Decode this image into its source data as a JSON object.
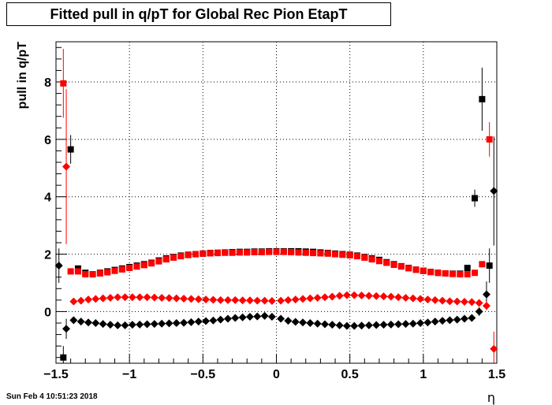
{
  "chart_data": {
    "type": "scatter",
    "title": "Fitted pull in q/pT for Global Rec Pion EtapT",
    "xlabel": "η",
    "ylabel": "pull in q/pT",
    "xlim": [
      -1.5,
      1.5
    ],
    "ylim": [
      -1.8,
      9.4
    ],
    "x_ticks": [
      -1.5,
      -1,
      -0.5,
      0,
      0.5,
      1,
      1.5
    ],
    "x_tick_labels": [
      "−1.5",
      "−1",
      "−0.5",
      "0",
      "0.5",
      "1",
      "1.5"
    ],
    "y_ticks": [
      0,
      2,
      4,
      6,
      8
    ],
    "y_tick_labels": [
      "0",
      "2",
      "4",
      "6",
      "8"
    ],
    "grid": true,
    "series": [
      {
        "marker": "square",
        "color": "#000000",
        "x": [
          -1.45,
          -1.4,
          -1.35,
          -1.3,
          -1.25,
          -1.2,
          -1.15,
          -1.1,
          -1.05,
          -1.0,
          -0.95,
          -0.9,
          -0.85,
          -0.8,
          -0.75,
          -0.7,
          -0.65,
          -0.6,
          -0.55,
          -0.5,
          -0.45,
          -0.4,
          -0.35,
          -0.3,
          -0.25,
          -0.2,
          -0.15,
          -0.1,
          -0.05,
          0.0,
          0.05,
          0.1,
          0.15,
          0.2,
          0.25,
          0.3,
          0.35,
          0.4,
          0.45,
          0.5,
          0.55,
          0.6,
          0.65,
          0.7,
          0.75,
          0.8,
          0.85,
          0.9,
          0.95,
          1.0,
          1.05,
          1.1,
          1.15,
          1.2,
          1.25,
          1.3,
          1.35,
          1.4,
          1.45
        ],
        "values": [
          -1.6,
          5.65,
          1.5,
          1.35,
          1.3,
          1.35,
          1.4,
          1.45,
          1.5,
          1.55,
          1.6,
          1.65,
          1.7,
          1.78,
          1.85,
          1.9,
          1.95,
          1.98,
          2.0,
          2.02,
          2.04,
          2.05,
          2.06,
          2.07,
          2.08,
          2.08,
          2.09,
          2.09,
          2.1,
          2.1,
          2.1,
          2.1,
          2.1,
          2.09,
          2.08,
          2.06,
          2.04,
          2.02,
          2.0,
          1.98,
          1.95,
          1.9,
          1.85,
          1.8,
          1.72,
          1.65,
          1.58,
          1.52,
          1.46,
          1.42,
          1.38,
          1.35,
          1.33,
          1.32,
          1.32,
          1.52,
          3.95,
          7.4,
          1.6
        ],
        "errors": [
          0.4,
          0.5,
          0.05,
          0.04,
          0.04,
          0.04,
          0.04,
          0.04,
          0.04,
          0.04,
          0.04,
          0.04,
          0.04,
          0.04,
          0.04,
          0.04,
          0.04,
          0.04,
          0.04,
          0.04,
          0.04,
          0.04,
          0.04,
          0.04,
          0.04,
          0.04,
          0.04,
          0.04,
          0.04,
          0.04,
          0.04,
          0.04,
          0.04,
          0.04,
          0.04,
          0.04,
          0.04,
          0.04,
          0.04,
          0.04,
          0.04,
          0.04,
          0.04,
          0.04,
          0.04,
          0.04,
          0.04,
          0.04,
          0.04,
          0.04,
          0.04,
          0.04,
          0.04,
          0.04,
          0.04,
          0.1,
          0.3,
          1.1,
          0.6
        ]
      },
      {
        "marker": "square",
        "color": "#ff0000",
        "x": [
          -1.45,
          -1.4,
          -1.35,
          -1.3,
          -1.25,
          -1.2,
          -1.15,
          -1.1,
          -1.05,
          -1.0,
          -0.95,
          -0.9,
          -0.85,
          -0.8,
          -0.75,
          -0.7,
          -0.65,
          -0.6,
          -0.55,
          -0.5,
          -0.45,
          -0.4,
          -0.35,
          -0.3,
          -0.25,
          -0.2,
          -0.15,
          -0.1,
          -0.05,
          0.0,
          0.05,
          0.1,
          0.15,
          0.2,
          0.25,
          0.3,
          0.35,
          0.4,
          0.45,
          0.5,
          0.55,
          0.6,
          0.65,
          0.7,
          0.75,
          0.8,
          0.85,
          0.9,
          0.95,
          1.0,
          1.05,
          1.1,
          1.15,
          1.2,
          1.25,
          1.3,
          1.35,
          1.4,
          1.45
        ],
        "values": [
          7.95,
          1.4,
          1.4,
          1.3,
          1.3,
          1.33,
          1.37,
          1.42,
          1.47,
          1.52,
          1.57,
          1.62,
          1.68,
          1.75,
          1.82,
          1.88,
          1.93,
          1.97,
          2.0,
          2.02,
          2.03,
          2.04,
          2.05,
          2.05,
          2.06,
          2.06,
          2.07,
          2.07,
          2.08,
          2.08,
          2.08,
          2.07,
          2.06,
          2.05,
          2.04,
          2.03,
          2.02,
          2.0,
          1.98,
          1.96,
          1.93,
          1.88,
          1.82,
          1.76,
          1.7,
          1.63,
          1.57,
          1.51,
          1.46,
          1.42,
          1.38,
          1.35,
          1.33,
          1.31,
          1.3,
          1.3,
          1.35,
          1.65,
          6.0
        ],
        "errors": [
          1.2,
          0.05,
          0.05,
          0.04,
          0.04,
          0.04,
          0.04,
          0.04,
          0.04,
          0.04,
          0.04,
          0.04,
          0.04,
          0.04,
          0.04,
          0.04,
          0.04,
          0.04,
          0.04,
          0.04,
          0.04,
          0.04,
          0.04,
          0.04,
          0.04,
          0.04,
          0.04,
          0.04,
          0.04,
          0.04,
          0.04,
          0.04,
          0.04,
          0.04,
          0.04,
          0.04,
          0.04,
          0.04,
          0.04,
          0.04,
          0.04,
          0.04,
          0.04,
          0.04,
          0.04,
          0.04,
          0.04,
          0.04,
          0.04,
          0.04,
          0.04,
          0.04,
          0.04,
          0.04,
          0.04,
          0.04,
          0.06,
          0.1,
          0.6
        ]
      },
      {
        "marker": "diamond",
        "color": "#000000",
        "x": [
          -1.48,
          -1.43,
          -1.38,
          -1.33,
          -1.28,
          -1.23,
          -1.18,
          -1.13,
          -1.08,
          -1.03,
          -0.98,
          -0.93,
          -0.88,
          -0.83,
          -0.78,
          -0.73,
          -0.68,
          -0.63,
          -0.58,
          -0.53,
          -0.48,
          -0.43,
          -0.38,
          -0.33,
          -0.28,
          -0.23,
          -0.18,
          -0.13,
          -0.08,
          -0.03,
          0.03,
          0.08,
          0.13,
          0.18,
          0.23,
          0.28,
          0.33,
          0.38,
          0.43,
          0.48,
          0.53,
          0.58,
          0.63,
          0.68,
          0.73,
          0.78,
          0.83,
          0.88,
          0.93,
          0.98,
          1.03,
          1.08,
          1.13,
          1.18,
          1.23,
          1.28,
          1.33,
          1.38,
          1.43,
          1.48
        ],
        "values": [
          1.6,
          -0.6,
          -0.3,
          -0.35,
          -0.38,
          -0.4,
          -0.43,
          -0.46,
          -0.48,
          -0.48,
          -0.46,
          -0.45,
          -0.44,
          -0.43,
          -0.42,
          -0.41,
          -0.4,
          -0.39,
          -0.37,
          -0.35,
          -0.33,
          -0.31,
          -0.28,
          -0.25,
          -0.22,
          -0.2,
          -0.18,
          -0.17,
          -0.15,
          -0.18,
          -0.25,
          -0.32,
          -0.36,
          -0.38,
          -0.4,
          -0.42,
          -0.44,
          -0.46,
          -0.48,
          -0.5,
          -0.5,
          -0.49,
          -0.48,
          -0.47,
          -0.46,
          -0.45,
          -0.44,
          -0.43,
          -0.42,
          -0.4,
          -0.38,
          -0.35,
          -0.32,
          -0.3,
          -0.28,
          -0.25,
          -0.22,
          0.0,
          0.6,
          4.2
        ],
        "errors": [
          0.6,
          0.35,
          0.05,
          0.04,
          0.04,
          0.04,
          0.04,
          0.04,
          0.04,
          0.04,
          0.04,
          0.04,
          0.04,
          0.04,
          0.04,
          0.04,
          0.04,
          0.04,
          0.04,
          0.04,
          0.04,
          0.04,
          0.04,
          0.04,
          0.04,
          0.04,
          0.04,
          0.04,
          0.04,
          0.04,
          0.04,
          0.04,
          0.04,
          0.04,
          0.04,
          0.04,
          0.04,
          0.04,
          0.04,
          0.04,
          0.04,
          0.04,
          0.04,
          0.04,
          0.04,
          0.04,
          0.04,
          0.04,
          0.04,
          0.04,
          0.04,
          0.04,
          0.04,
          0.04,
          0.04,
          0.04,
          0.06,
          0.15,
          0.45,
          1.9
        ]
      },
      {
        "marker": "diamond",
        "color": "#ff0000",
        "x": [
          -1.43,
          -1.38,
          -1.33,
          -1.28,
          -1.23,
          -1.18,
          -1.13,
          -1.08,
          -1.03,
          -0.98,
          -0.93,
          -0.88,
          -0.83,
          -0.78,
          -0.73,
          -0.68,
          -0.63,
          -0.58,
          -0.53,
          -0.48,
          -0.43,
          -0.38,
          -0.33,
          -0.28,
          -0.23,
          -0.18,
          -0.13,
          -0.08,
          -0.03,
          0.03,
          0.08,
          0.13,
          0.18,
          0.23,
          0.28,
          0.33,
          0.38,
          0.43,
          0.48,
          0.53,
          0.58,
          0.63,
          0.68,
          0.73,
          0.78,
          0.83,
          0.88,
          0.93,
          0.98,
          1.03,
          1.08,
          1.13,
          1.18,
          1.23,
          1.28,
          1.33,
          1.38,
          1.43,
          1.48
        ],
        "values": [
          5.05,
          0.35,
          0.38,
          0.42,
          0.44,
          0.46,
          0.48,
          0.5,
          0.5,
          0.5,
          0.5,
          0.5,
          0.49,
          0.48,
          0.47,
          0.46,
          0.45,
          0.44,
          0.43,
          0.42,
          0.41,
          0.4,
          0.4,
          0.4,
          0.39,
          0.39,
          0.38,
          0.38,
          0.37,
          0.38,
          0.4,
          0.42,
          0.44,
          0.46,
          0.48,
          0.5,
          0.52,
          0.55,
          0.57,
          0.57,
          0.56,
          0.55,
          0.54,
          0.53,
          0.52,
          0.5,
          0.48,
          0.46,
          0.44,
          0.42,
          0.4,
          0.38,
          0.36,
          0.35,
          0.34,
          0.33,
          0.3,
          0.2,
          -1.3
        ],
        "errors": [
          2.7,
          0.04,
          0.04,
          0.04,
          0.04,
          0.04,
          0.04,
          0.04,
          0.04,
          0.04,
          0.04,
          0.04,
          0.04,
          0.04,
          0.04,
          0.04,
          0.04,
          0.04,
          0.04,
          0.04,
          0.04,
          0.04,
          0.04,
          0.04,
          0.04,
          0.04,
          0.04,
          0.04,
          0.04,
          0.04,
          0.04,
          0.04,
          0.04,
          0.04,
          0.04,
          0.04,
          0.04,
          0.04,
          0.04,
          0.04,
          0.04,
          0.04,
          0.04,
          0.04,
          0.04,
          0.04,
          0.04,
          0.04,
          0.04,
          0.04,
          0.04,
          0.04,
          0.04,
          0.04,
          0.04,
          0.04,
          0.06,
          0.15,
          0.6
        ]
      }
    ]
  },
  "footer": {
    "timestamp": "Sun Feb  4 10:51:23 2018"
  }
}
